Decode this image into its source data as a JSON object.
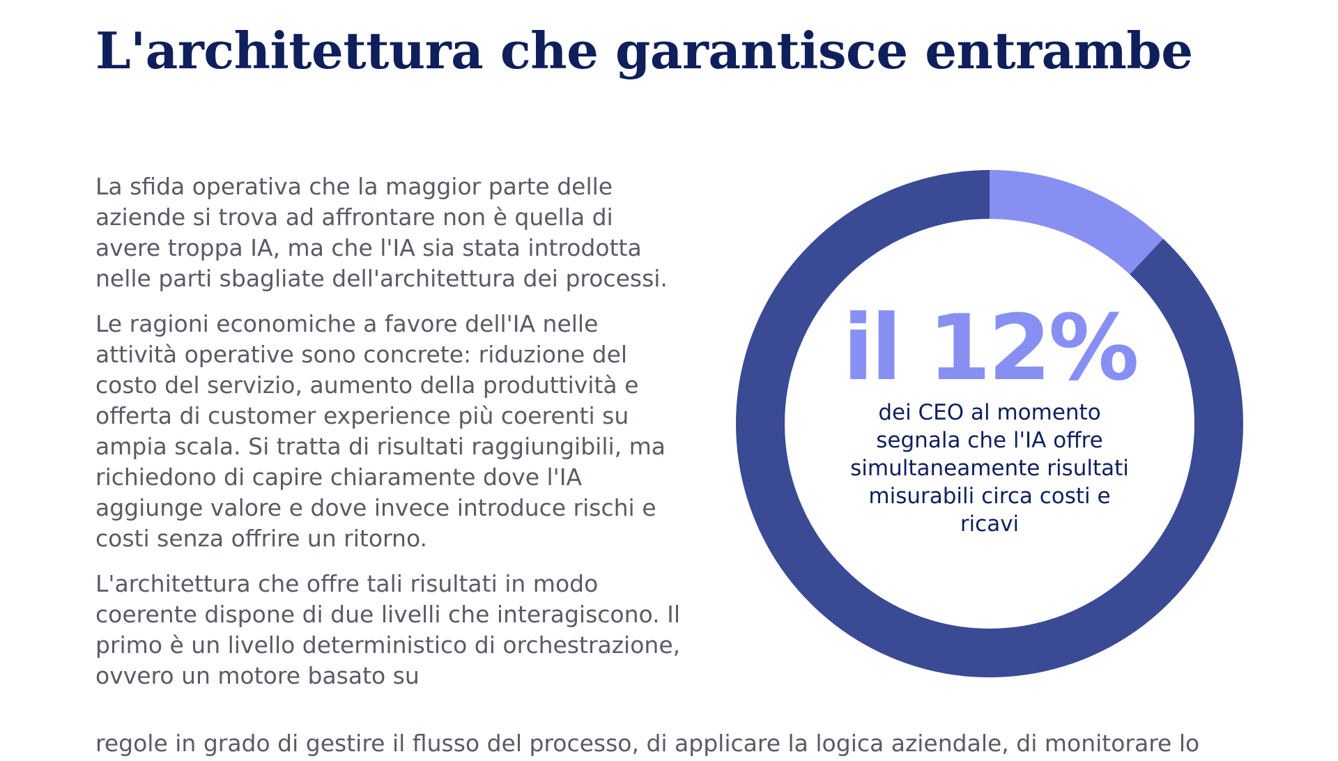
{
  "document": {
    "title": "L'architettura che garantisce entrambe",
    "paragraphs": [
      "La sfida operativa che la maggior parte delle aziende si trova ad affrontare non è quella di avere troppa IA, ma che l'IA sia stata introdotta nelle parti sbagliate dell'architettura dei processi.",
      "Le ragioni economiche a favore dell'IA nelle attività operative sono concrete: riduzione del costo del servizio, aumento della produttività e offerta di customer experience più coerenti su ampia scala. Si tratta di risultati raggiungibili, ma richiedono di capire chiaramente dove l'IA aggiunge valore e dove invece introduce rischi e costi senza offrire un ritorno.",
      "L'architettura che offre tali risultati in modo coerente dispone di due livelli che interagiscono. Il primo è un livello deterministico di orchestrazione, ovvero un motore basato su"
    ],
    "continuation": "regole in grado di gestire il flusso del processo, di applicare la logica aziendale, di monitorare lo"
  },
  "stat": {
    "value_text": "il 12%",
    "caption": "dei CEO al momento segnala che l'IA offre simultaneamente risultati misurabili circa costi e ricavi",
    "highlight_percent": 12
  },
  "colors": {
    "title": "#0f1f5c",
    "body_text": "#5a5a66",
    "ring_dark": "#3a4a94",
    "ring_highlight": "#8790f2",
    "stat_number": "#8790f2",
    "stat_caption": "#0f1f5c"
  }
}
